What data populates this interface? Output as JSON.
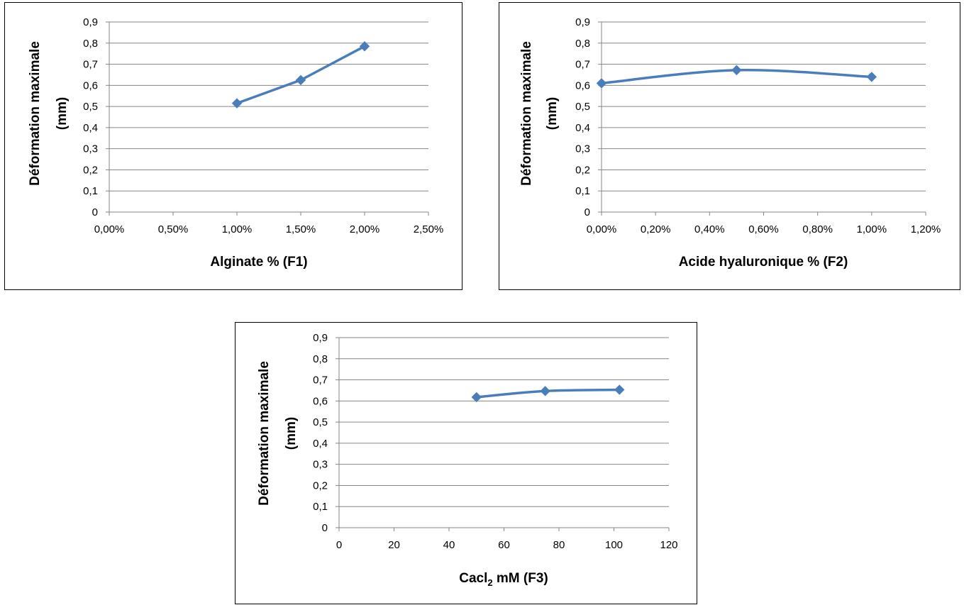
{
  "chart_data": [
    {
      "type": "line",
      "x_format": "percent",
      "xlabel": "Alginate % (F1)",
      "ylabel": [
        "Déformation maximale",
        "(mm)"
      ],
      "xlim": [
        0,
        0.025
      ],
      "xticks": [
        0,
        0.005,
        0.01,
        0.015,
        0.02,
        0.025
      ],
      "xtick_labels": [
        "0,00%",
        "0,50%",
        "1,00%",
        "1,50%",
        "2,00%",
        "2,50%"
      ],
      "ylim": [
        0,
        0.9
      ],
      "yticks": [
        0,
        0.1,
        0.2,
        0.3,
        0.4,
        0.5,
        0.6,
        0.7,
        0.8,
        0.9
      ],
      "ytick_labels": [
        "0",
        "0,1",
        "0,2",
        "0,3",
        "0,4",
        "0,5",
        "0,6",
        "0,7",
        "0,8",
        "0,9"
      ],
      "grid": true,
      "smooth": false,
      "series": [
        {
          "color": "#4a7ebb",
          "marker": "diamond",
          "x": [
            0.01,
            0.015,
            0.02
          ],
          "y": [
            0.515,
            0.625,
            0.785
          ]
        }
      ]
    },
    {
      "type": "line",
      "x_format": "percent",
      "xlabel": "Acide hyaluronique % (F2)",
      "ylabel": [
        "Déformation maximale",
        "(mm)"
      ],
      "xlim": [
        0,
        0.012
      ],
      "xticks": [
        0,
        0.002,
        0.004,
        0.006,
        0.008,
        0.01,
        0.012
      ],
      "xtick_labels": [
        "0,00%",
        "0,20%",
        "0,40%",
        "0,60%",
        "0,80%",
        "1,00%",
        "1,20%"
      ],
      "ylim": [
        0,
        0.9
      ],
      "yticks": [
        0,
        0.1,
        0.2,
        0.3,
        0.4,
        0.5,
        0.6,
        0.7,
        0.8,
        0.9
      ],
      "ytick_labels": [
        "0",
        "0,1",
        "0,2",
        "0,3",
        "0,4",
        "0,5",
        "0,6",
        "0,7",
        "0,8",
        "0,9"
      ],
      "grid": true,
      "smooth": true,
      "series": [
        {
          "color": "#4a7ebb",
          "marker": "diamond",
          "x": [
            0,
            0.005,
            0.01
          ],
          "y": [
            0.61,
            0.672,
            0.64
          ]
        }
      ]
    },
    {
      "type": "line",
      "x_format": "number",
      "xlabel": "Cacl",
      "xlabel_sub": "2",
      "xlabel_suffix": "  mM (F3)",
      "ylabel": [
        "Déformation  maximale",
        "(mm)"
      ],
      "xlim": [
        0,
        120
      ],
      "xticks": [
        0,
        20,
        40,
        60,
        80,
        100,
        120
      ],
      "xtick_labels": [
        "0",
        "20",
        "40",
        "60",
        "80",
        "100",
        "120"
      ],
      "ylim": [
        0,
        0.9
      ],
      "yticks": [
        0,
        0.1,
        0.2,
        0.3,
        0.4,
        0.5,
        0.6,
        0.7,
        0.8,
        0.9
      ],
      "ytick_labels": [
        "0",
        "0,1",
        "0,2",
        "0,3",
        "0,4",
        "0,5",
        "0,6",
        "0,7",
        "0,8",
        "0,9"
      ],
      "grid": true,
      "smooth": true,
      "series": [
        {
          "color": "#4a7ebb",
          "marker": "diamond",
          "x": [
            50,
            75,
            102
          ],
          "y": [
            0.618,
            0.647,
            0.653
          ]
        }
      ]
    }
  ]
}
